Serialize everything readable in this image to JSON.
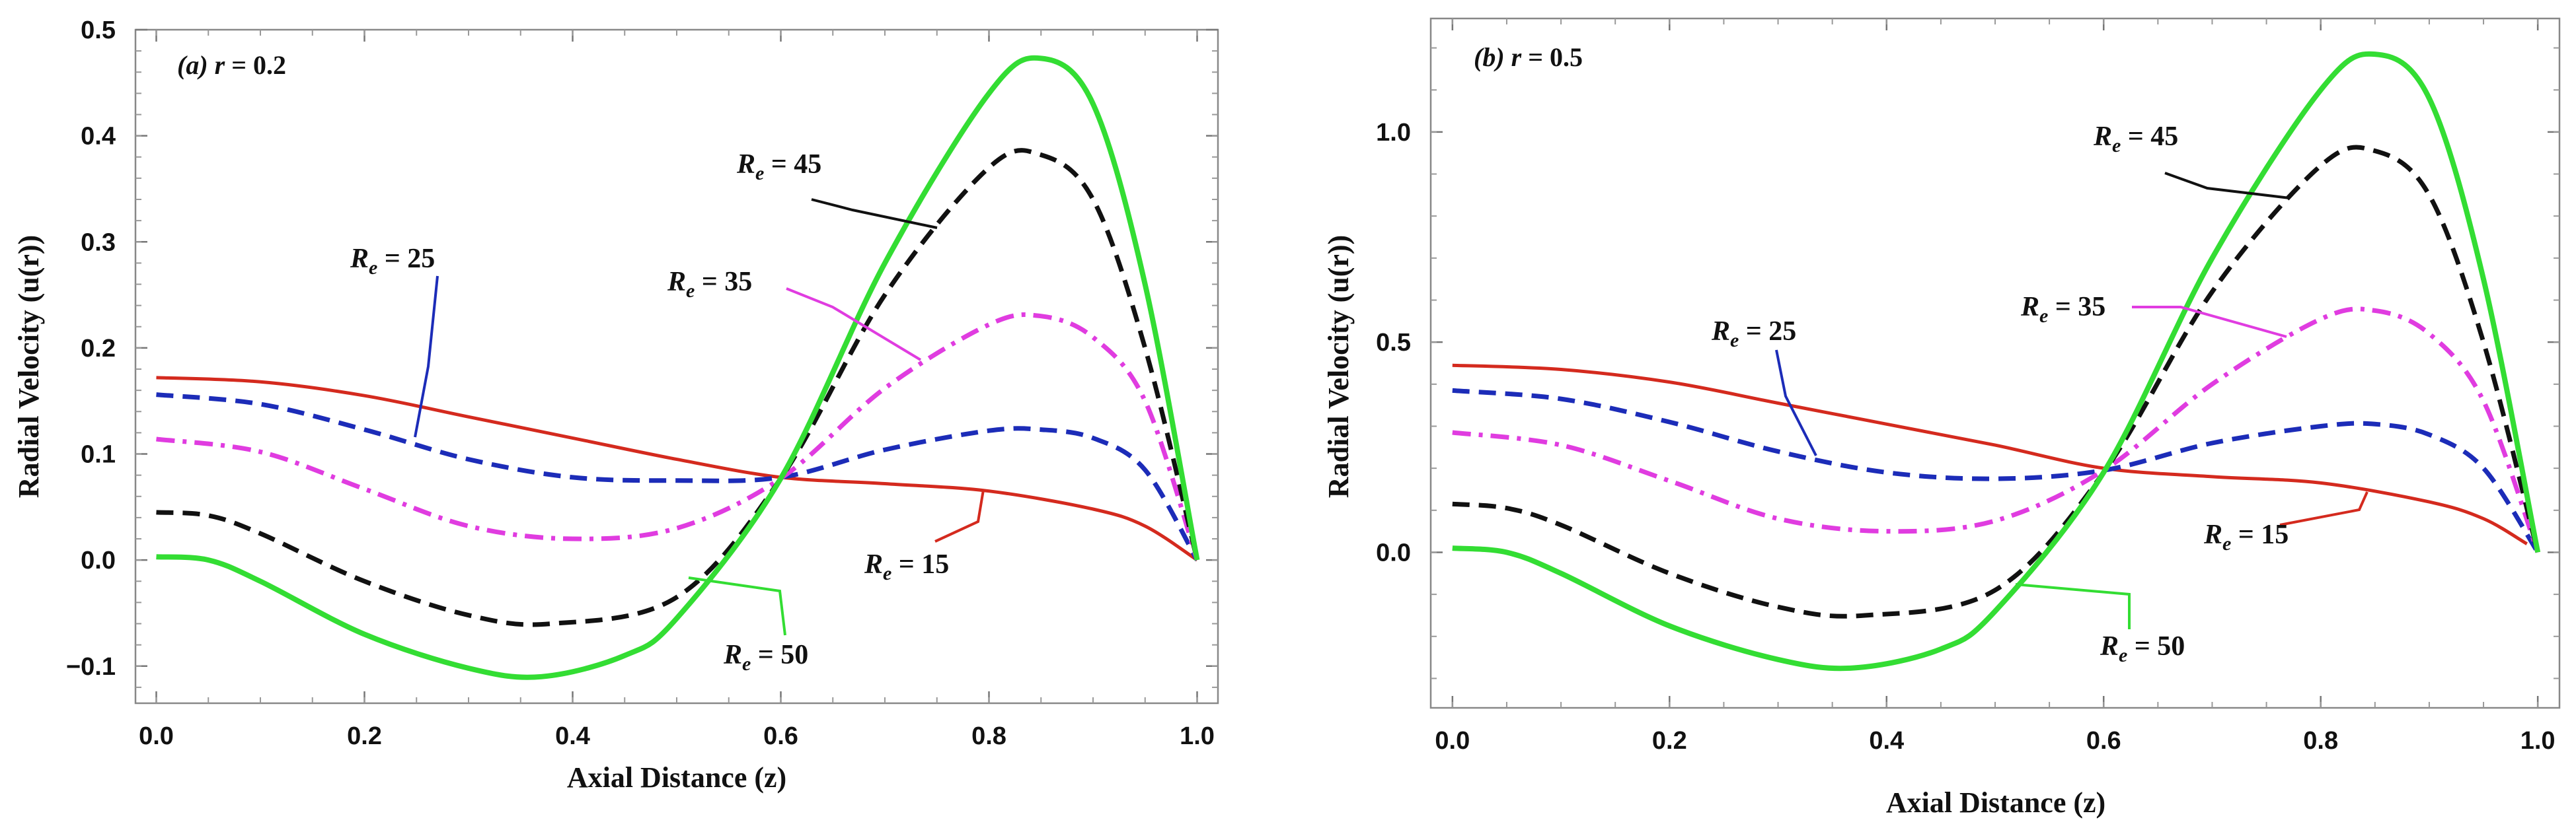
{
  "chart_data": [
    {
      "type": "line",
      "panel_label": "(a) r = 0.2",
      "panel_letter": "(a)",
      "panel_var": "r",
      "panel_value": "0.2",
      "xlabel": "Axial Distance (z)",
      "ylabel": "Radial Velocity (u(r))",
      "xlim": [
        -0.02,
        1.02
      ],
      "ylim": [
        -0.135,
        0.5
      ],
      "xticks": [
        "0.0",
        "0.2",
        "0.4",
        "0.6",
        "0.8",
        "1.0"
      ],
      "yticks": [
        "-0.1",
        "0.0",
        "0.1",
        "0.2",
        "0.3",
        "0.4",
        "0.5"
      ],
      "series": [
        {
          "name": "Re = 15",
          "Re": "15",
          "color": "#d42a1e",
          "dash": "solid",
          "x": [
            0,
            0.1,
            0.2,
            0.3,
            0.4,
            0.5,
            0.6,
            0.7,
            0.8,
            0.9,
            0.95,
            1.0
          ],
          "y": [
            0.172,
            0.168,
            0.155,
            0.135,
            0.115,
            0.095,
            0.078,
            0.072,
            0.065,
            0.048,
            0.032,
            0.0
          ]
        },
        {
          "name": "Re = 25",
          "Re": "25",
          "color": "#1c2cb8",
          "dash": "dashed",
          "x": [
            0,
            0.1,
            0.2,
            0.3,
            0.4,
            0.5,
            0.6,
            0.7,
            0.8,
            0.85,
            0.9,
            0.95,
            1.0
          ],
          "y": [
            0.156,
            0.147,
            0.123,
            0.095,
            0.078,
            0.075,
            0.078,
            0.104,
            0.122,
            0.123,
            0.115,
            0.085,
            0.0
          ]
        },
        {
          "name": "Re = 35",
          "Re": "35",
          "color": "#e03ce0",
          "dash": "dashdot",
          "x": [
            0,
            0.1,
            0.2,
            0.3,
            0.4,
            0.5,
            0.6,
            0.7,
            0.8,
            0.85,
            0.9,
            0.95,
            1.0
          ],
          "y": [
            0.114,
            0.102,
            0.067,
            0.032,
            0.02,
            0.03,
            0.077,
            0.162,
            0.222,
            0.23,
            0.21,
            0.15,
            0.0
          ]
        },
        {
          "name": "Re = 45",
          "Re": "45",
          "color": "#111111",
          "dash": "dashed",
          "x": [
            0,
            0.05,
            0.1,
            0.2,
            0.3,
            0.38,
            0.5,
            0.6,
            0.7,
            0.8,
            0.85,
            0.9,
            0.95,
            1.0
          ],
          "y": [
            0.045,
            0.042,
            0.025,
            -0.02,
            -0.052,
            -0.06,
            -0.035,
            0.077,
            0.25,
            0.37,
            0.382,
            0.34,
            0.2,
            0.0
          ]
        },
        {
          "name": "Re = 50",
          "Re": "50",
          "color": "#33dd33",
          "dash": "solid",
          "x": [
            0,
            0.05,
            0.1,
            0.2,
            0.3,
            0.37,
            0.45,
            0.5,
            0.6,
            0.7,
            0.8,
            0.85,
            0.9,
            0.95,
            1.0
          ],
          "y": [
            0.003,
            0.0,
            -0.02,
            -0.07,
            -0.102,
            -0.11,
            -0.09,
            -0.055,
            0.077,
            0.28,
            0.44,
            0.473,
            0.43,
            0.26,
            0.0
          ]
        }
      ]
    },
    {
      "type": "line",
      "panel_label": "(b) r = 0.5",
      "panel_letter": "(b)",
      "panel_var": "r",
      "panel_value": "0.5",
      "xlabel": "Axial Distance (z)",
      "ylabel": "Radial Velocity (u(r))",
      "xlim": [
        -0.02,
        1.02
      ],
      "ylim": [
        -0.37,
        1.27
      ],
      "xticks": [
        "0.0",
        "0.2",
        "0.4",
        "0.6",
        "0.8",
        "1.0"
      ],
      "yticks": [
        "0.0",
        "0.5",
        "1.0"
      ],
      "series": [
        {
          "name": "Re = 15",
          "Re": "15",
          "color": "#d42a1e",
          "dash": "solid",
          "x": [
            0,
            0.1,
            0.2,
            0.3,
            0.4,
            0.5,
            0.6,
            0.7,
            0.8,
            0.9,
            0.95,
            0.99
          ],
          "y": [
            0.445,
            0.435,
            0.405,
            0.355,
            0.305,
            0.255,
            0.2,
            0.18,
            0.165,
            0.12,
            0.08,
            0.02
          ]
        },
        {
          "name": "Re = 25",
          "Re": "25",
          "color": "#1c2cb8",
          "dash": "dashed",
          "x": [
            0,
            0.1,
            0.2,
            0.3,
            0.4,
            0.5,
            0.6,
            0.7,
            0.8,
            0.85,
            0.9,
            0.95,
            1.0
          ],
          "y": [
            0.385,
            0.365,
            0.31,
            0.24,
            0.19,
            0.175,
            0.195,
            0.26,
            0.3,
            0.305,
            0.28,
            0.2,
            0.0
          ]
        },
        {
          "name": "Re = 35",
          "Re": "35",
          "color": "#e03ce0",
          "dash": "dashdot",
          "x": [
            0,
            0.1,
            0.2,
            0.3,
            0.4,
            0.5,
            0.6,
            0.7,
            0.8,
            0.85,
            0.9,
            0.95,
            1.0
          ],
          "y": [
            0.285,
            0.255,
            0.17,
            0.08,
            0.05,
            0.075,
            0.195,
            0.4,
            0.555,
            0.575,
            0.52,
            0.36,
            0.0
          ]
        },
        {
          "name": "Re = 45",
          "Re": "45",
          "color": "#111111",
          "dash": "dashed",
          "x": [
            0,
            0.05,
            0.1,
            0.2,
            0.3,
            0.38,
            0.5,
            0.6,
            0.7,
            0.8,
            0.85,
            0.9,
            0.95,
            1.0
          ],
          "y": [
            0.115,
            0.105,
            0.065,
            -0.05,
            -0.13,
            -0.15,
            -0.09,
            0.19,
            0.62,
            0.92,
            0.955,
            0.85,
            0.5,
            0.0
          ]
        },
        {
          "name": "Re = 50",
          "Re": "50",
          "color": "#33dd33",
          "dash": "solid",
          "x": [
            0,
            0.05,
            0.1,
            0.2,
            0.3,
            0.37,
            0.45,
            0.5,
            0.6,
            0.7,
            0.8,
            0.85,
            0.9,
            0.95,
            1.0
          ],
          "y": [
            0.01,
            0.0,
            -0.05,
            -0.175,
            -0.255,
            -0.275,
            -0.23,
            -0.14,
            0.19,
            0.7,
            1.1,
            1.185,
            1.08,
            0.65,
            0.0
          ]
        }
      ]
    }
  ]
}
